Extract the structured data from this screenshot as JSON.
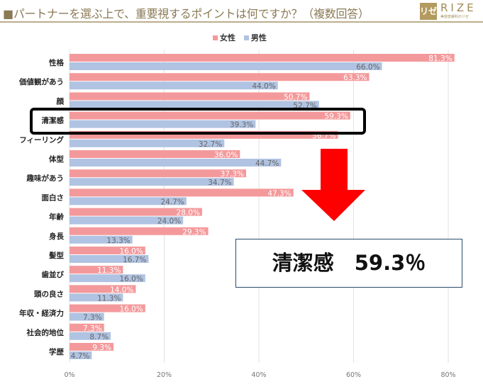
{
  "header": {
    "title": "■パートナーを選ぶ上で、重要視するポイントは何ですか？（複数回答）"
  },
  "logo": {
    "mark": "リゼ",
    "word": "RIZE",
    "sub": "美容皮膚科のリゼ"
  },
  "callout": {
    "text": "清潔感　59.3％"
  },
  "colors": {
    "female": "#f4999b",
    "male": "#b0c3e2",
    "arrow": "#ff0000",
    "header": "#8a7a55"
  },
  "chart_data": {
    "type": "bar",
    "orientation": "horizontal",
    "categories": [
      "性格",
      "価値観があう",
      "顔",
      "清潔感",
      "フィーリング",
      "体型",
      "趣味があう",
      "面白さ",
      "年齢",
      "身長",
      "髪型",
      "歯並び",
      "頭の良さ",
      "年収・経済力",
      "社会的地位",
      "学歴"
    ],
    "series": [
      {
        "name": "女性",
        "values": [
          81.3,
          63.3,
          50.7,
          59.3,
          56.7,
          36.0,
          37.3,
          47.3,
          28.0,
          29.3,
          16.0,
          11.3,
          14.0,
          16.0,
          7.3,
          9.3
        ]
      },
      {
        "name": "男性",
        "values": [
          66.0,
          44.0,
          52.7,
          39.3,
          32.7,
          44.7,
          34.7,
          24.7,
          24.0,
          13.3,
          16.7,
          16.0,
          11.3,
          7.3,
          8.7,
          4.7
        ]
      }
    ],
    "xlim": [
      0,
      80
    ],
    "xticks": [
      "0%",
      "20%",
      "40%",
      "60%",
      "80%"
    ],
    "grid": true,
    "legend": "top",
    "highlight": "清潔感"
  }
}
